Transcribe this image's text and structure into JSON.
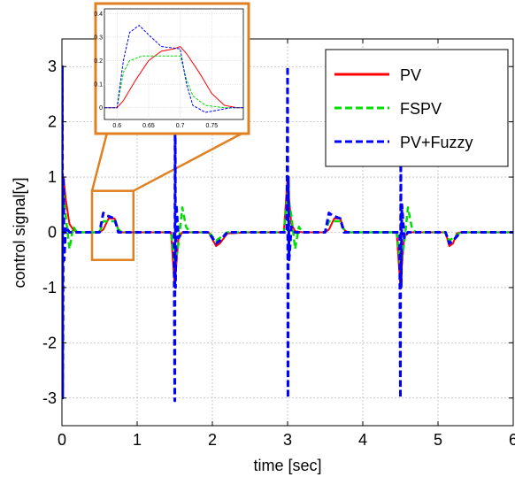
{
  "chart_data": {
    "type": "line",
    "title": "",
    "xlabel": "time [sec]",
    "ylabel": "control signal[v]",
    "xlim": [
      0,
      6
    ],
    "ylim": [
      -3.5,
      3.5
    ],
    "x_ticks": [
      0,
      1,
      2,
      3,
      4,
      5,
      6
    ],
    "x_tick_labels": [
      "0",
      "1",
      "2",
      "3",
      "4",
      "5",
      "6"
    ],
    "y_ticks": [
      -3,
      -2,
      -1,
      0,
      1,
      2,
      3
    ],
    "y_tick_labels": [
      "-3",
      "-2",
      "-1",
      "0",
      "1",
      "2",
      "3"
    ],
    "grid": true,
    "legend_position": "top-right",
    "series": [
      {
        "name": "PV",
        "color": "#ff0000",
        "style": "solid",
        "x": [
          0,
          0.02,
          0.05,
          0.1,
          0.15,
          0.2,
          0.3,
          0.5,
          0.55,
          0.62,
          0.7,
          0.75,
          0.8,
          1.0,
          1.45,
          1.5,
          1.52,
          1.55,
          1.6,
          1.7,
          1.95,
          2.05,
          2.1,
          2.2,
          2.5,
          2.95,
          3.0,
          3.02,
          3.05,
          3.1,
          3.2,
          3.5,
          3.55,
          3.62,
          3.7,
          3.75,
          3.8,
          4.0,
          4.45,
          4.5,
          4.52,
          4.55,
          4.6,
          4.7,
          5.1,
          5.15,
          5.2,
          5.25,
          5.3,
          6.0
        ],
        "y": [
          0,
          1.0,
          0.6,
          0.15,
          0.05,
          0.0,
          0.0,
          0.0,
          0.05,
          0.25,
          0.25,
          0.05,
          0.0,
          0.0,
          0.0,
          -1.0,
          -0.6,
          -0.1,
          0.0,
          0.0,
          0.0,
          -0.25,
          -0.2,
          -0.02,
          0.0,
          0.0,
          1.0,
          0.6,
          0.15,
          0.02,
          0.0,
          0.0,
          0.05,
          0.25,
          0.25,
          0.05,
          0.0,
          0.0,
          0.0,
          -1.0,
          -0.6,
          -0.1,
          0.0,
          0.0,
          0.0,
          -0.25,
          -0.2,
          -0.02,
          0.0,
          0.0
        ]
      },
      {
        "name": "FSPV",
        "color": "#00dd00",
        "style": "dashed",
        "x": [
          0,
          0.02,
          0.05,
          0.1,
          0.15,
          0.2,
          0.3,
          0.5,
          0.55,
          0.6,
          0.7,
          0.75,
          0.8,
          1.0,
          1.45,
          1.5,
          1.55,
          1.6,
          1.65,
          1.7,
          1.8,
          1.95,
          2.05,
          2.1,
          2.2,
          2.5,
          2.95,
          3.0,
          3.05,
          3.1,
          3.15,
          3.2,
          3.3,
          3.5,
          3.55,
          3.6,
          3.7,
          3.75,
          3.8,
          4.0,
          4.45,
          4.5,
          4.55,
          4.6,
          4.65,
          4.7,
          4.8,
          5.1,
          5.15,
          5.2,
          5.3,
          6.0
        ],
        "y": [
          0,
          0.7,
          0.3,
          -0.3,
          0.1,
          0.0,
          0.0,
          0.0,
          0.2,
          0.2,
          0.2,
          0.05,
          0.0,
          0.0,
          0.0,
          -0.6,
          -0.2,
          0.45,
          0.1,
          0.0,
          0.0,
          0.0,
          -0.15,
          -0.1,
          0.0,
          0.0,
          0.0,
          0.7,
          0.3,
          -0.3,
          0.1,
          0.0,
          0.0,
          0.0,
          0.2,
          0.2,
          0.2,
          0.05,
          0.0,
          0.0,
          0.0,
          -0.6,
          -0.2,
          0.45,
          0.1,
          0.0,
          0.0,
          0.0,
          -0.15,
          -0.1,
          0.0,
          0.0
        ]
      },
      {
        "name": "PV+Fuzzy",
        "color": "#0000ff",
        "style": "dashed",
        "x": [
          0,
          0.005,
          0.01,
          0.02,
          0.03,
          0.05,
          0.1,
          0.2,
          0.5,
          0.55,
          0.6,
          0.7,
          0.75,
          0.8,
          1.0,
          1.49,
          1.5,
          1.505,
          1.51,
          1.52,
          1.55,
          1.6,
          1.7,
          1.95,
          2.05,
          2.1,
          2.2,
          2.5,
          2.99,
          3.0,
          3.005,
          3.01,
          3.02,
          3.05,
          3.1,
          3.2,
          3.5,
          3.55,
          3.6,
          3.7,
          3.75,
          3.8,
          4.0,
          4.49,
          4.5,
          4.505,
          4.51,
          4.52,
          4.55,
          4.6,
          4.7,
          5.1,
          5.15,
          5.2,
          5.3,
          6.0
        ],
        "y": [
          0,
          3.0,
          -3.0,
          1.0,
          -0.5,
          0.1,
          0.0,
          0.0,
          0.0,
          0.35,
          0.3,
          0.25,
          0.0,
          0.0,
          0.0,
          0.0,
          -3.05,
          3.0,
          -1.0,
          0.5,
          -0.1,
          0.0,
          0.0,
          0.0,
          -0.2,
          -0.15,
          0.0,
          0.0,
          0.0,
          3.0,
          -3.0,
          1.0,
          -0.5,
          0.1,
          0.0,
          0.0,
          0.0,
          0.35,
          0.3,
          0.25,
          0.0,
          0.0,
          0.0,
          0.0,
          -3.0,
          1.6,
          -1.0,
          0.5,
          -0.1,
          0.0,
          0.0,
          0.0,
          -0.2,
          -0.15,
          0.0,
          0.0
        ]
      }
    ],
    "zoom_box": {
      "x": [
        0.4,
        0.95
      ],
      "y": [
        -0.5,
        0.75
      ]
    },
    "inset": {
      "xlim": [
        0.58,
        0.8
      ],
      "ylim": [
        -0.05,
        0.42
      ],
      "x_ticks": [
        0.6,
        0.65,
        0.7,
        0.75
      ],
      "x_tick_labels": [
        "0.6",
        "0.65",
        "0.7",
        "0.75"
      ],
      "y_ticks": [
        0,
        0.1,
        0.2,
        0.3,
        0.4
      ],
      "y_tick_labels": [
        "0",
        "0.1",
        "0.2",
        "0.3",
        "0.4"
      ],
      "frame_color": "#e08020",
      "series": [
        {
          "name": "PV",
          "color": "#ff0000",
          "style": "solid",
          "x": [
            0.58,
            0.6,
            0.61,
            0.63,
            0.65,
            0.67,
            0.69,
            0.7,
            0.71,
            0.73,
            0.75,
            0.77,
            0.79,
            0.8
          ],
          "y": [
            0.0,
            0.0,
            0.03,
            0.12,
            0.2,
            0.24,
            0.25,
            0.26,
            0.23,
            0.15,
            0.06,
            0.01,
            0.0,
            0.0
          ]
        },
        {
          "name": "FSPV",
          "color": "#00dd00",
          "style": "dashed",
          "x": [
            0.58,
            0.6,
            0.61,
            0.62,
            0.64,
            0.68,
            0.7,
            0.71,
            0.72,
            0.74,
            0.77,
            0.8
          ],
          "y": [
            0.0,
            0.0,
            0.15,
            0.2,
            0.22,
            0.22,
            0.22,
            0.12,
            0.05,
            0.01,
            0.0,
            0.0
          ]
        },
        {
          "name": "PV+Fuzzy",
          "color": "#0000ff",
          "style": "dashed",
          "x": [
            0.58,
            0.6,
            0.61,
            0.62,
            0.635,
            0.65,
            0.67,
            0.7,
            0.71,
            0.72,
            0.74,
            0.76,
            0.78,
            0.8
          ],
          "y": [
            0.0,
            0.0,
            0.2,
            0.32,
            0.35,
            0.31,
            0.26,
            0.25,
            0.1,
            0.01,
            -0.02,
            -0.01,
            0.0,
            0.0
          ]
        }
      ]
    }
  }
}
